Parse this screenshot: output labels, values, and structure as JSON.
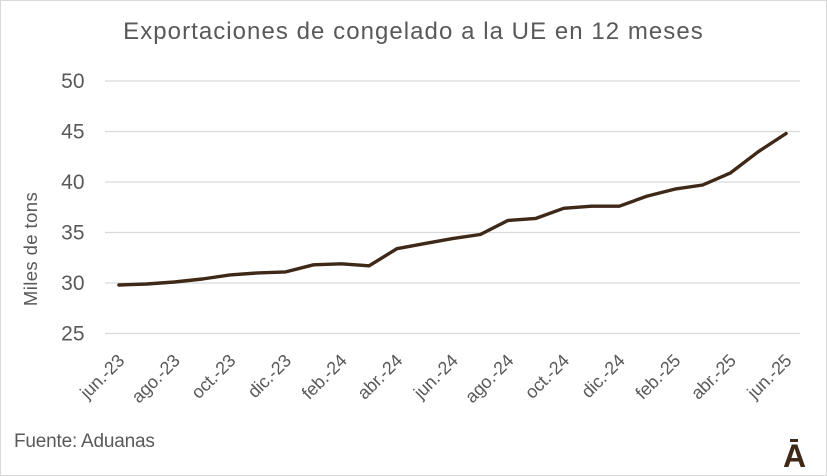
{
  "title": "Exportaciones de congelado a la UE en 12 meses",
  "source_note": "Fuente: Aduanas",
  "logo": {
    "letter": "A"
  },
  "colors": {
    "line": "#3E2817",
    "grid": "#D9D9D9",
    "text": "#595959",
    "border": "#D9D9D9",
    "background": "#FFFFFF"
  },
  "chart_data": {
    "type": "line",
    "title": "Exportaciones de congelado a la UE en 12 meses",
    "xlabel": "",
    "ylabel": "Miles de tons",
    "ylim": [
      25,
      50
    ],
    "yticks": [
      25,
      30,
      35,
      40,
      45,
      50
    ],
    "grid": "horizontal",
    "legend": "none",
    "categories": [
      "jun.-23",
      "jul.-23",
      "ago.-23",
      "sep.-23",
      "oct.-23",
      "nov.-23",
      "dic.-23",
      "ene.-24",
      "feb.-24",
      "mar.-24",
      "abr.-24",
      "may.-24",
      "jun.-24",
      "jul.-24",
      "ago.-24",
      "sep.-24",
      "oct.-24",
      "nov.-24",
      "dic.-24",
      "ene.-25",
      "feb.-25",
      "mar.-25",
      "abr.-25",
      "may.-25",
      "jun.-25"
    ],
    "x_tick_labels": [
      "jun.-23",
      "ago.-23",
      "oct.-23",
      "dic.-23",
      "feb.-24",
      "abr.-24",
      "jun.-24",
      "ago.-24",
      "oct.-24",
      "dic.-24",
      "feb.-25",
      "abr.-25",
      "jun.-25"
    ],
    "values": [
      29.8,
      29.9,
      30.1,
      30.4,
      30.8,
      31.0,
      31.1,
      31.8,
      31.9,
      31.7,
      33.4,
      33.9,
      34.4,
      34.8,
      36.2,
      36.4,
      37.4,
      37.6,
      37.6,
      38.6,
      39.3,
      39.7,
      40.9,
      43.0,
      44.8
    ]
  }
}
